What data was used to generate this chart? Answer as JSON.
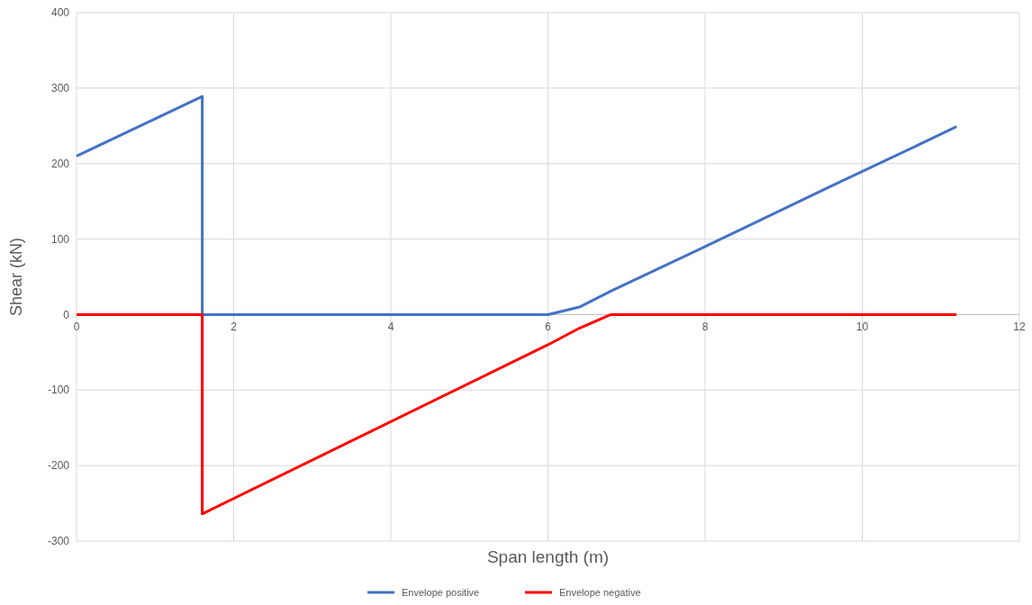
{
  "chart_data": {
    "type": "line",
    "xlabel": "Span length (m)",
    "ylabel": "Shear (kN)",
    "xlim": [
      0,
      12
    ],
    "xticks": [
      0,
      2,
      4,
      6,
      8,
      10,
      12
    ],
    "ylim": [
      -300,
      400
    ],
    "yticks": [
      -300,
      -200,
      -100,
      0,
      100,
      200,
      300,
      400
    ],
    "grid": true,
    "legend": "bottom",
    "marker": "none",
    "line_style": "solid",
    "series": [
      {
        "name": "Envelope positive",
        "color": "#4472c4",
        "x": [
          0,
          1.6,
          1.6,
          6,
          6.4,
          6.8,
          8,
          9.6,
          10.8,
          11.2
        ],
        "values": [
          210,
          289,
          0,
          0,
          10,
          31,
          90,
          170,
          229,
          249
        ]
      },
      {
        "name": "Envelope negative",
        "color": "#ff0000",
        "x": [
          0,
          1.6,
          1.6,
          6,
          6.4,
          6.8,
          11.2
        ],
        "values": [
          0,
          0,
          -264,
          -40,
          -18,
          0,
          0
        ]
      }
    ]
  }
}
